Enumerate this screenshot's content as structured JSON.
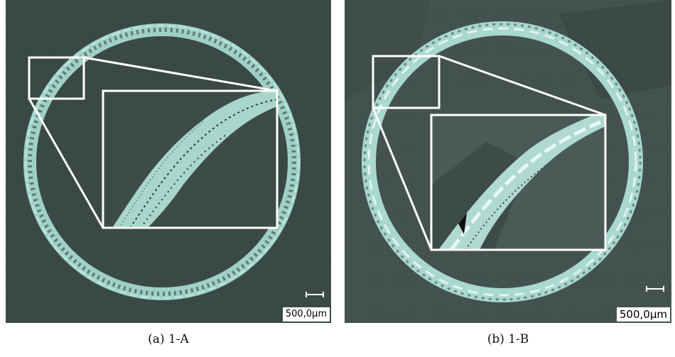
{
  "figure": {
    "panels": [
      {
        "id": "a",
        "scale_label": "500,0µm",
        "caption": "(a) 1-A",
        "background": "#3b4a47",
        "ring_color": "#9fd0c4"
      },
      {
        "id": "b",
        "scale_label": "500,0µm",
        "caption": "(b) 1-B",
        "background": "#42514e",
        "ring_color": "#a9d8cf"
      }
    ]
  }
}
